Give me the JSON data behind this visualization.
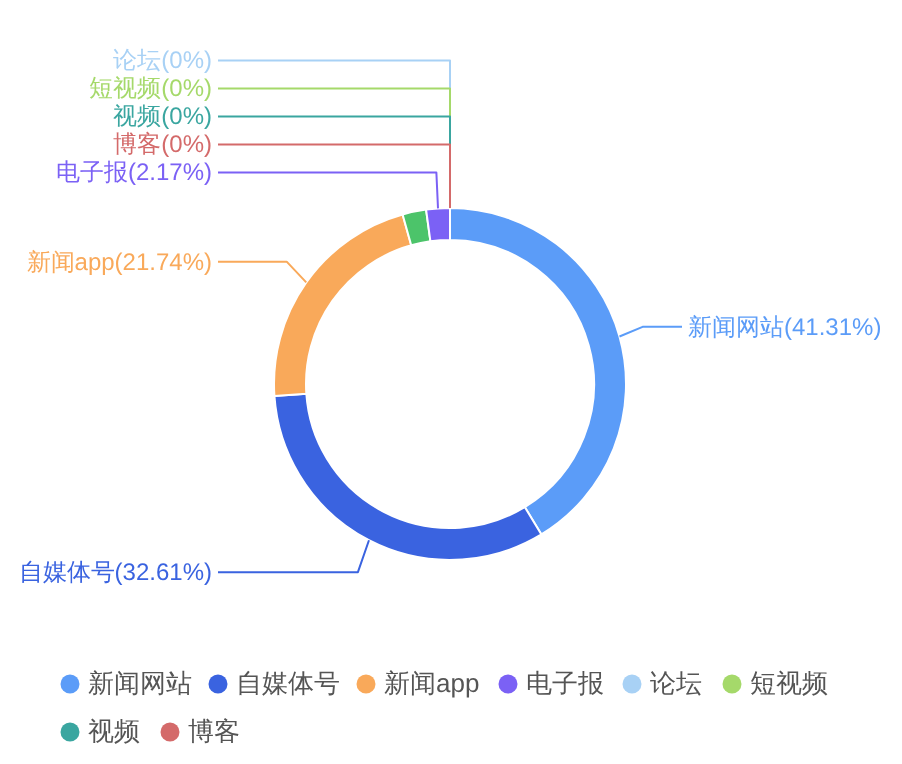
{
  "chart_data": {
    "type": "donut",
    "categories": [
      "新闻网站",
      "自媒体号",
      "新闻app",
      null,
      "电子报",
      null,
      "论坛",
      "短视频",
      "视频",
      "博客"
    ],
    "values": [
      41.31,
      32.61,
      21.74,
      2.17,
      2.17,
      0,
      0,
      0,
      0,
      0
    ],
    "colors": [
      "#5b9cf8",
      "#3a63e0",
      "#f9a95a",
      "#4cc46a",
      "#7b61f5",
      "#f76565",
      "#a8d1f5",
      "#a5d96a",
      "#3aa6a0",
      "#d46a6a"
    ],
    "value_labels": [
      "新闻网站(41.31%)",
      "自媒体号(32.61%)",
      "新闻app(21.74%)",
      null,
      "电子报(2.17%)",
      null,
      "论坛(0%)",
      "短视频(0%)",
      "视频(0%)",
      "博客(0%)"
    ],
    "legend": "bottom"
  }
}
